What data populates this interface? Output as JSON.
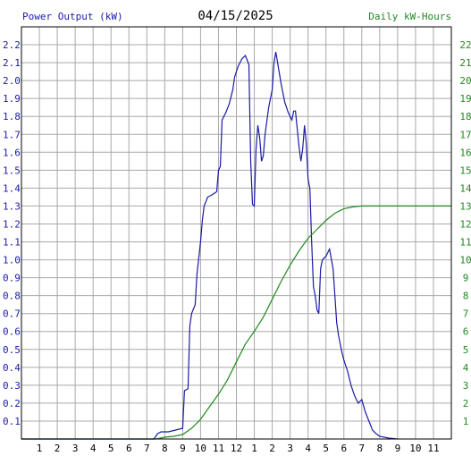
{
  "header": {
    "left_axis_title": "Power Output (kW)",
    "date": "04/15/2025",
    "right_axis_title": "Daily kW-Hours"
  },
  "colors": {
    "power": "#1a1aa8",
    "energy": "#1f8a1f",
    "grid": "#a8a8a8",
    "frame": "#000000"
  },
  "chart_data": {
    "type": "line",
    "title": "04/15/2025",
    "ylabel_left": "Power Output (kW)",
    "ylabel_right": "Daily kW-Hours",
    "x_range_hours": [
      0,
      24
    ],
    "x_tick_labels": [
      "1",
      "2",
      "3",
      "4",
      "5",
      "6",
      "7",
      "8",
      "9",
      "10",
      "11",
      "12",
      "1",
      "2",
      "3",
      "4",
      "5",
      "6",
      "7",
      "8",
      "9",
      "10",
      "11"
    ],
    "y_left_range": [
      0,
      2.3
    ],
    "y_left_ticks": [
      "0.1",
      "0.2",
      "0.3",
      "0.4",
      "0.5",
      "0.6",
      "0.7",
      "0.8",
      "0.9",
      "1.0",
      "1.1",
      "1.2",
      "1.3",
      "1.4",
      "1.5",
      "1.6",
      "1.7",
      "1.8",
      "1.9",
      "2.0",
      "2.1",
      "2.2"
    ],
    "y_right_range": [
      0,
      23
    ],
    "y_right_ticks": [
      "1",
      "2",
      "3",
      "4",
      "5",
      "6",
      "7",
      "8",
      "9",
      "10",
      "11",
      "12",
      "13",
      "14",
      "15",
      "16",
      "17",
      "18",
      "19",
      "20",
      "21",
      "22"
    ],
    "grid": true,
    "series": [
      {
        "name": "Power Output (kW)",
        "axis": "left",
        "points": [
          [
            0,
            0
          ],
          [
            7.4,
            0
          ],
          [
            7.6,
            0.03
          ],
          [
            7.8,
            0.04
          ],
          [
            8.2,
            0.04
          ],
          [
            8.6,
            0.05
          ],
          [
            9.0,
            0.06
          ],
          [
            9.1,
            0.27
          ],
          [
            9.3,
            0.28
          ],
          [
            9.4,
            0.63
          ],
          [
            9.5,
            0.7
          ],
          [
            9.7,
            0.75
          ],
          [
            9.8,
            0.92
          ],
          [
            10.0,
            1.1
          ],
          [
            10.1,
            1.22
          ],
          [
            10.2,
            1.3
          ],
          [
            10.4,
            1.35
          ],
          [
            10.6,
            1.36
          ],
          [
            10.9,
            1.38
          ],
          [
            11.0,
            1.5
          ],
          [
            11.1,
            1.52
          ],
          [
            11.2,
            1.78
          ],
          [
            11.4,
            1.82
          ],
          [
            11.6,
            1.87
          ],
          [
            11.8,
            1.95
          ],
          [
            11.9,
            2.02
          ],
          [
            12.1,
            2.08
          ],
          [
            12.3,
            2.12
          ],
          [
            12.5,
            2.14
          ],
          [
            12.7,
            2.09
          ],
          [
            12.8,
            1.55
          ],
          [
            12.9,
            1.31
          ],
          [
            13.0,
            1.3
          ],
          [
            13.1,
            1.62
          ],
          [
            13.2,
            1.75
          ],
          [
            13.3,
            1.68
          ],
          [
            13.4,
            1.55
          ],
          [
            13.5,
            1.58
          ],
          [
            13.6,
            1.7
          ],
          [
            13.8,
            1.85
          ],
          [
            14.0,
            1.95
          ],
          [
            14.1,
            2.1
          ],
          [
            14.2,
            2.16
          ],
          [
            14.3,
            2.1
          ],
          [
            14.5,
            1.98
          ],
          [
            14.7,
            1.88
          ],
          [
            14.9,
            1.82
          ],
          [
            15.1,
            1.78
          ],
          [
            15.2,
            1.83
          ],
          [
            15.3,
            1.83
          ],
          [
            15.5,
            1.63
          ],
          [
            15.6,
            1.55
          ],
          [
            15.7,
            1.62
          ],
          [
            15.8,
            1.75
          ],
          [
            15.9,
            1.65
          ],
          [
            16.0,
            1.45
          ],
          [
            16.1,
            1.4
          ],
          [
            16.2,
            1.1
          ],
          [
            16.3,
            0.85
          ],
          [
            16.4,
            0.8
          ],
          [
            16.5,
            0.72
          ],
          [
            16.6,
            0.7
          ],
          [
            16.7,
            0.95
          ],
          [
            16.8,
            1.0
          ],
          [
            17.0,
            1.02
          ],
          [
            17.2,
            1.06
          ],
          [
            17.4,
            0.95
          ],
          [
            17.5,
            0.8
          ],
          [
            17.6,
            0.65
          ],
          [
            17.7,
            0.58
          ],
          [
            17.9,
            0.48
          ],
          [
            18.0,
            0.44
          ],
          [
            18.2,
            0.38
          ],
          [
            18.4,
            0.3
          ],
          [
            18.6,
            0.24
          ],
          [
            18.8,
            0.2
          ],
          [
            19.0,
            0.22
          ],
          [
            19.2,
            0.15
          ],
          [
            19.4,
            0.1
          ],
          [
            19.6,
            0.05
          ],
          [
            19.8,
            0.03
          ],
          [
            20.0,
            0.015
          ],
          [
            20.5,
            0.005
          ],
          [
            21.0,
            0
          ]
        ]
      },
      {
        "name": "Daily kW-Hours",
        "axis": "right",
        "points": [
          [
            0,
            0
          ],
          [
            7.5,
            0
          ],
          [
            8.0,
            0.1
          ],
          [
            8.5,
            0.15
          ],
          [
            9.0,
            0.25
          ],
          [
            9.5,
            0.6
          ],
          [
            10.0,
            1.1
          ],
          [
            10.5,
            1.8
          ],
          [
            11.0,
            2.5
          ],
          [
            11.5,
            3.3
          ],
          [
            12.0,
            4.3
          ],
          [
            12.5,
            5.3
          ],
          [
            13.0,
            6.0
          ],
          [
            13.5,
            6.8
          ],
          [
            14.0,
            7.8
          ],
          [
            14.5,
            8.8
          ],
          [
            15.0,
            9.7
          ],
          [
            15.5,
            10.5
          ],
          [
            16.0,
            11.2
          ],
          [
            16.5,
            11.7
          ],
          [
            17.0,
            12.2
          ],
          [
            17.5,
            12.6
          ],
          [
            18.0,
            12.85
          ],
          [
            18.5,
            12.95
          ],
          [
            19.0,
            13.0
          ],
          [
            24.0,
            13.0
          ]
        ]
      }
    ]
  }
}
